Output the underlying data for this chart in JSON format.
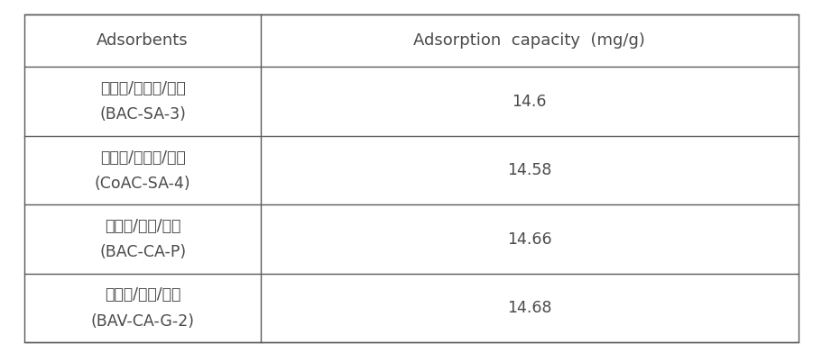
{
  "col_headers": [
    "Adsorbents",
    "Adsorption  capacity  (mg/g)"
  ],
  "rows": [
    {
      "adsorbent_line1": "대나무/수증기/과립",
      "adsorbent_line2": "(BAC-SA-3)",
      "capacity": "14.6"
    },
    {
      "adsorbent_line1": "야자각/수증기/과립",
      "adsorbent_line2": "(CoAC-SA-4)",
      "capacity": "14.58"
    },
    {
      "adsorbent_line1": "대나무/화학/분말",
      "adsorbent_line2": "(BAC-CA-P)",
      "capacity": "14.66"
    },
    {
      "adsorbent_line1": "대나무/화학/분말",
      "adsorbent_line2": "(BAV-CA-G-2)",
      "capacity": "14.68"
    }
  ],
  "background_color": "#ffffff",
  "text_color": "#4a4a4a",
  "line_color": "#5a5a5a",
  "header_fontsize": 13,
  "cell_fontsize": 12.5,
  "col_split": 0.305
}
